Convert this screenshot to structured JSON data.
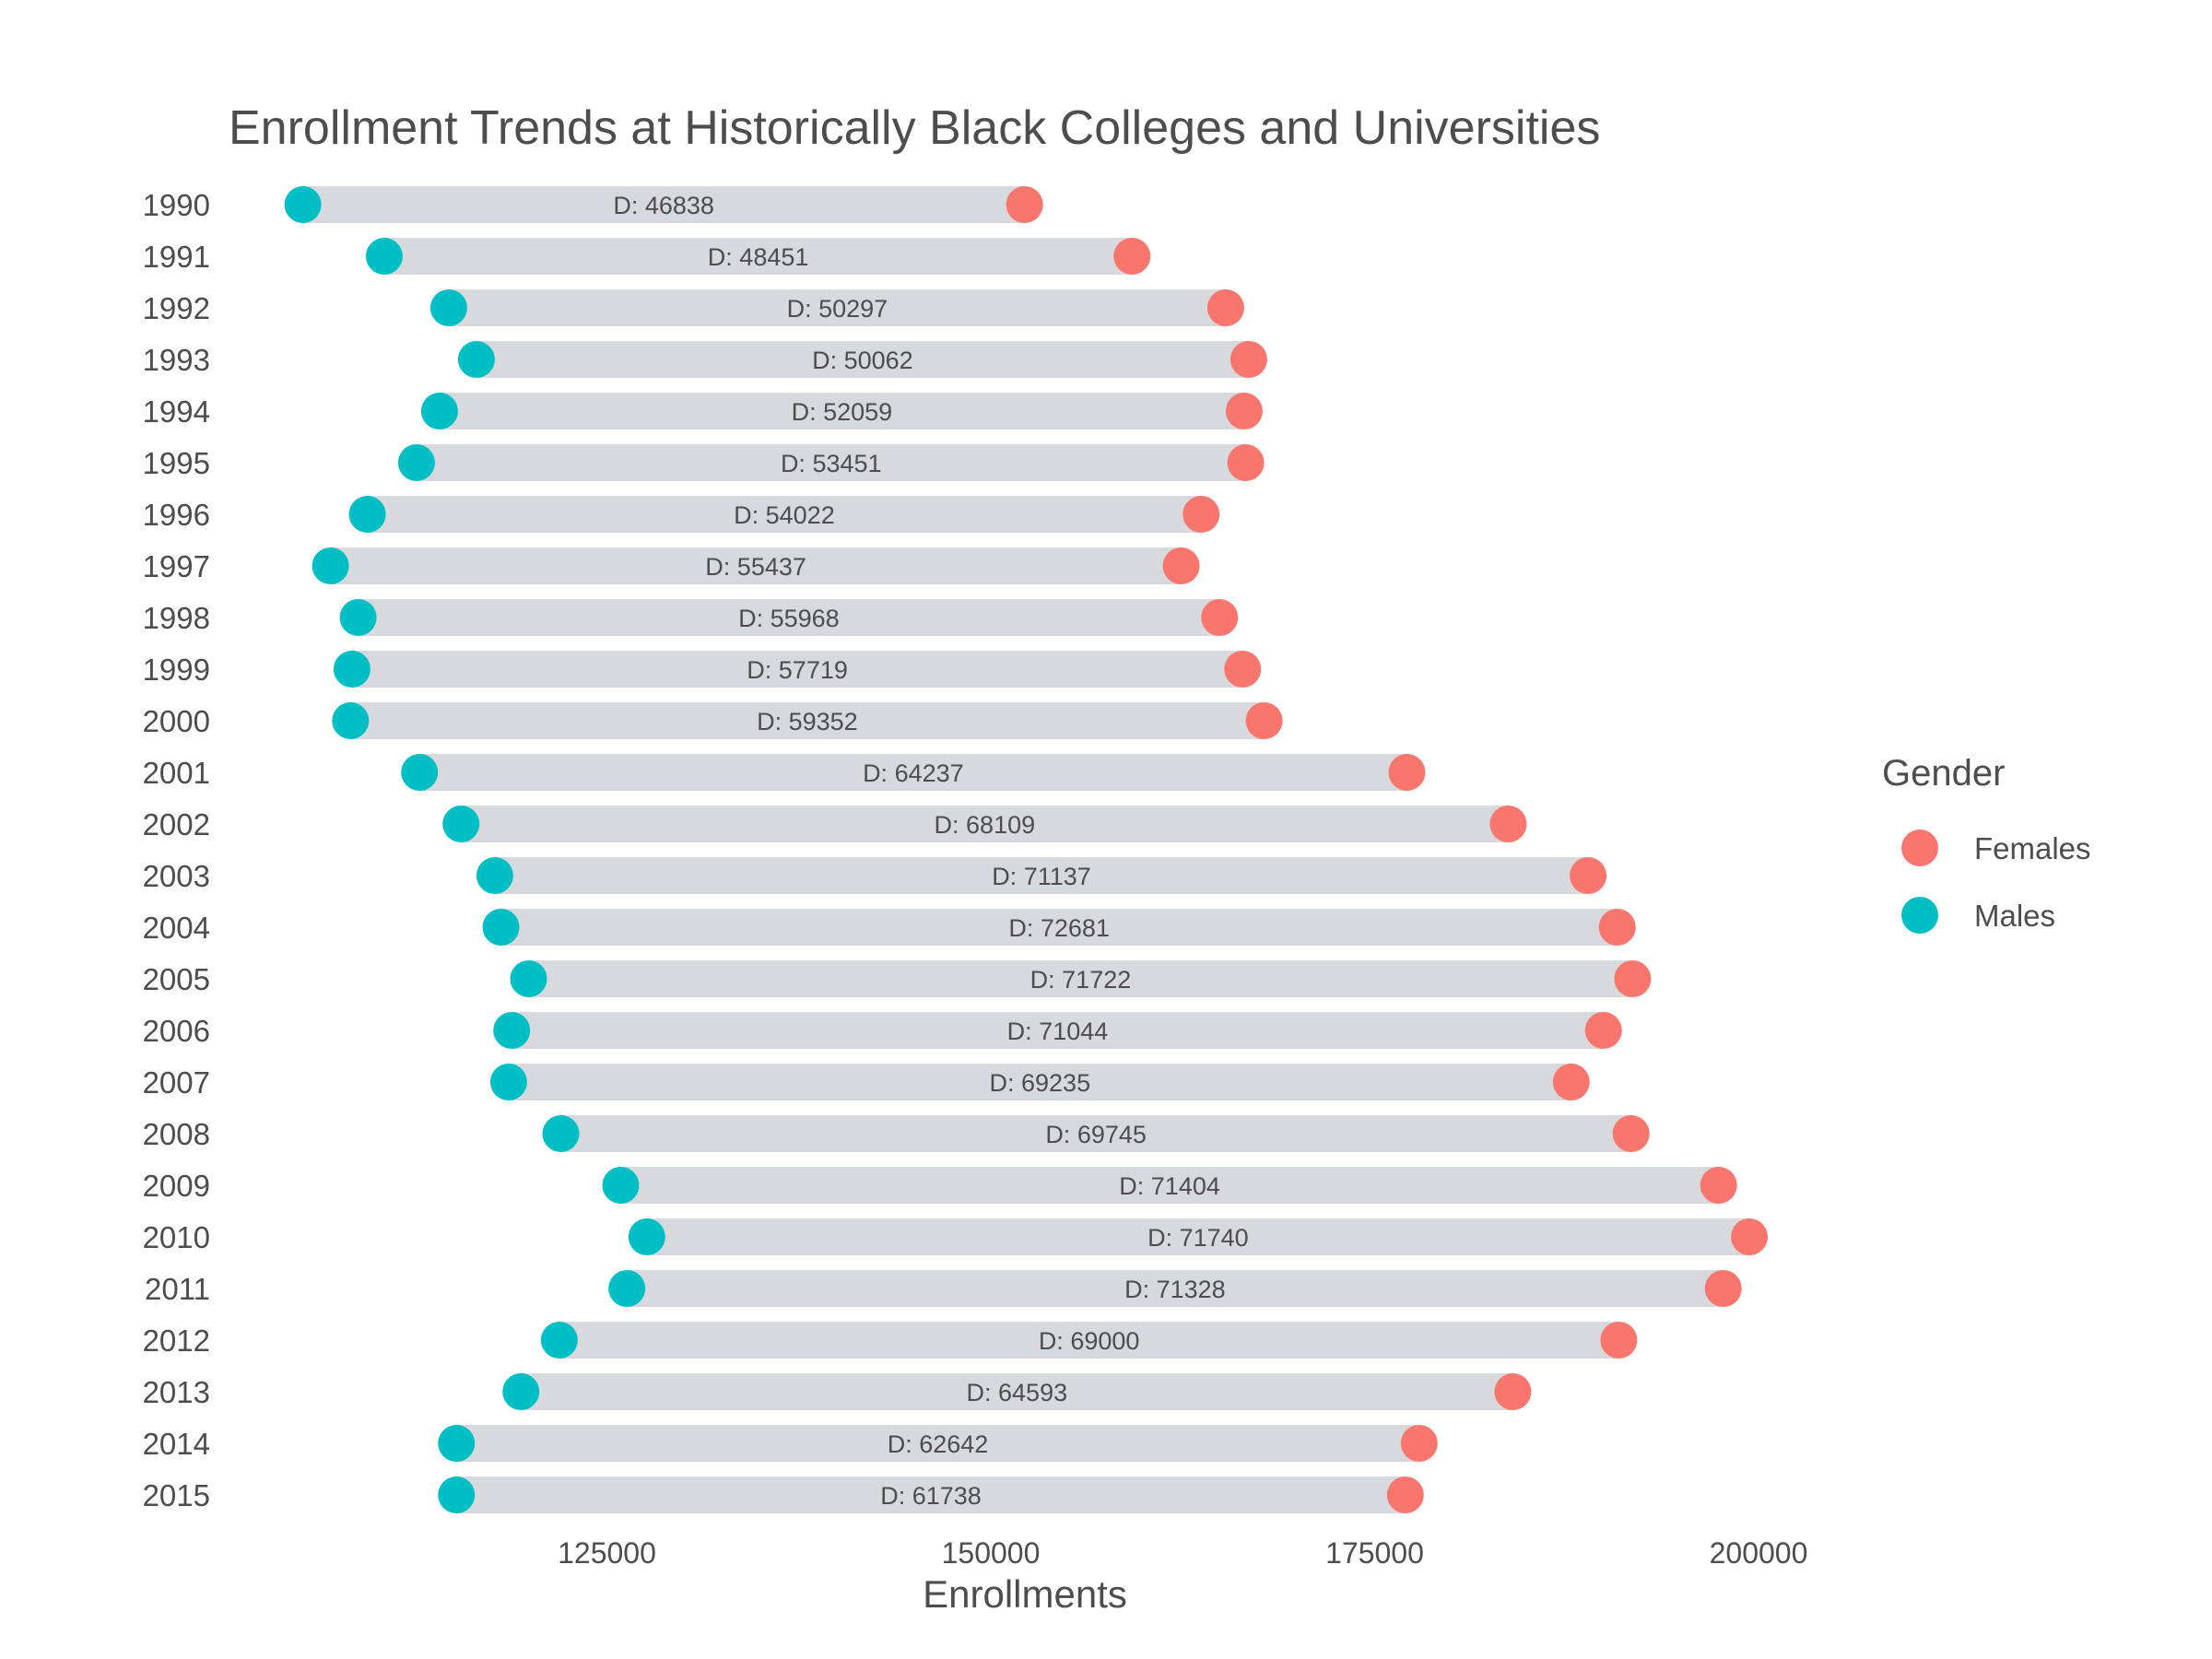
{
  "chart_data": {
    "type": "dumbbell",
    "title": "Enrollment Trends at Historically Black Colleges and Universities",
    "xlabel": "Enrollments",
    "ylabel": "",
    "xlim": [
      100000,
      202000
    ],
    "xticks": [
      "125000",
      "150000",
      "175000",
      "200000"
    ],
    "difference_prefix": "D:  ",
    "legend": {
      "title": "Gender",
      "position": "right",
      "items": [
        {
          "label": "Females",
          "color": "#F8766D"
        },
        {
          "label": "Males",
          "color": "#00BFC4"
        }
      ]
    },
    "colors": {
      "bar": "#d7d9dd",
      "females": "#F8766D",
      "males": "#00BFC4"
    },
    "rows": [
      {
        "year": "1990",
        "males": 105200,
        "females": 152200,
        "diff": "46838"
      },
      {
        "year": "1991",
        "males": 110500,
        "females": 159200,
        "diff": "48451"
      },
      {
        "year": "1992",
        "males": 114700,
        "females": 165300,
        "diff": "50297"
      },
      {
        "year": "1993",
        "males": 116500,
        "females": 166800,
        "diff": "50062"
      },
      {
        "year": "1994",
        "males": 114100,
        "females": 166500,
        "diff": "52059"
      },
      {
        "year": "1995",
        "males": 112600,
        "females": 166600,
        "diff": "53451"
      },
      {
        "year": "1996",
        "males": 109400,
        "females": 163700,
        "diff": "54022"
      },
      {
        "year": "1997",
        "males": 107000,
        "females": 162400,
        "diff": "55437"
      },
      {
        "year": "1998",
        "males": 108800,
        "females": 164900,
        "diff": "55968"
      },
      {
        "year": "1999",
        "males": 108400,
        "females": 166400,
        "diff": "57719"
      },
      {
        "year": "2000",
        "males": 108300,
        "females": 167800,
        "diff": "59352"
      },
      {
        "year": "2001",
        "males": 112800,
        "females": 177100,
        "diff": "64237"
      },
      {
        "year": "2002",
        "males": 115500,
        "females": 183700,
        "diff": "68109"
      },
      {
        "year": "2003",
        "males": 117700,
        "females": 188900,
        "diff": "71137"
      },
      {
        "year": "2004",
        "males": 118100,
        "females": 190800,
        "diff": "72681"
      },
      {
        "year": "2005",
        "males": 119900,
        "females": 191800,
        "diff": "71722"
      },
      {
        "year": "2006",
        "males": 118800,
        "females": 189900,
        "diff": "71044"
      },
      {
        "year": "2007",
        "males": 118600,
        "females": 187800,
        "diff": "69235"
      },
      {
        "year": "2008",
        "males": 122000,
        "females": 191700,
        "diff": "69745"
      },
      {
        "year": "2009",
        "males": 125900,
        "females": 197400,
        "diff": "71404"
      },
      {
        "year": "2010",
        "males": 127600,
        "females": 199400,
        "diff": "71740"
      },
      {
        "year": "2011",
        "males": 126300,
        "females": 197700,
        "diff": "71328"
      },
      {
        "year": "2012",
        "males": 121900,
        "females": 190900,
        "diff": "69000"
      },
      {
        "year": "2013",
        "males": 119400,
        "females": 184000,
        "diff": "64593"
      },
      {
        "year": "2014",
        "males": 115200,
        "females": 177900,
        "diff": "62642"
      },
      {
        "year": "2015",
        "males": 115200,
        "females": 177000,
        "diff": "61738"
      }
    ]
  }
}
